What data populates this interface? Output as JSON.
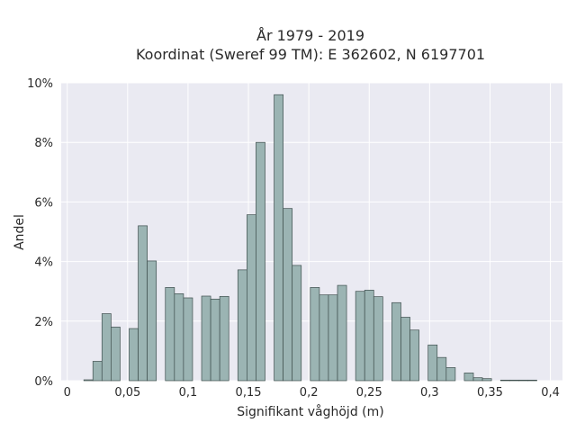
{
  "chart_data": {
    "type": "bar",
    "title_lines": [
      "År 1979 - 2019",
      "Koordinat (Sweref 99 TM): E 362602, N 6197701"
    ],
    "xlabel": "Signifikant våghöjd (m)",
    "ylabel": "Andel",
    "xlim": [
      -0.005,
      0.41
    ],
    "ylim": [
      0,
      10
    ],
    "bin_width": 0.0075,
    "x_ticks": [
      {
        "value": 0,
        "label": "0"
      },
      {
        "value": 0.05,
        "label": "0,05"
      },
      {
        "value": 0.1,
        "label": "0,1"
      },
      {
        "value": 0.15,
        "label": "0,15"
      },
      {
        "value": 0.2,
        "label": "0,2"
      },
      {
        "value": 0.25,
        "label": "0,25"
      },
      {
        "value": 0.3,
        "label": "0,3"
      },
      {
        "value": 0.35,
        "label": "0,35"
      },
      {
        "value": 0.4,
        "label": "0,4"
      }
    ],
    "y_ticks": [
      {
        "value": 0,
        "label": "0%"
      },
      {
        "value": 2,
        "label": "2%"
      },
      {
        "value": 4,
        "label": "4%"
      },
      {
        "value": 6,
        "label": "6%"
      },
      {
        "value": 8,
        "label": "8%"
      },
      {
        "value": 10,
        "label": "10%"
      }
    ],
    "bars": [
      {
        "x": 0.0175,
        "value": 0.03
      },
      {
        "x": 0.025,
        "value": 0.65
      },
      {
        "x": 0.0325,
        "value": 2.25
      },
      {
        "x": 0.04,
        "value": 1.8
      },
      {
        "x": 0.055,
        "value": 1.75
      },
      {
        "x": 0.0625,
        "value": 5.2
      },
      {
        "x": 0.07,
        "value": 4.02
      },
      {
        "x": 0.085,
        "value": 3.13
      },
      {
        "x": 0.0925,
        "value": 2.92
      },
      {
        "x": 0.1,
        "value": 2.78
      },
      {
        "x": 0.115,
        "value": 2.84
      },
      {
        "x": 0.1225,
        "value": 2.74
      },
      {
        "x": 0.13,
        "value": 2.83
      },
      {
        "x": 0.145,
        "value": 3.72
      },
      {
        "x": 0.1525,
        "value": 5.57
      },
      {
        "x": 0.16,
        "value": 8.0
      },
      {
        "x": 0.175,
        "value": 9.6
      },
      {
        "x": 0.1825,
        "value": 5.78
      },
      {
        "x": 0.19,
        "value": 3.87
      },
      {
        "x": 0.205,
        "value": 3.13
      },
      {
        "x": 0.2125,
        "value": 2.88
      },
      {
        "x": 0.22,
        "value": 2.88
      },
      {
        "x": 0.2275,
        "value": 3.2
      },
      {
        "x": 0.2425,
        "value": 3.0
      },
      {
        "x": 0.25,
        "value": 3.04
      },
      {
        "x": 0.2575,
        "value": 2.82
      },
      {
        "x": 0.2725,
        "value": 2.62
      },
      {
        "x": 0.28,
        "value": 2.13
      },
      {
        "x": 0.2875,
        "value": 1.7
      },
      {
        "x": 0.3025,
        "value": 1.2
      },
      {
        "x": 0.31,
        "value": 0.78
      },
      {
        "x": 0.3175,
        "value": 0.44
      },
      {
        "x": 0.3325,
        "value": 0.26
      },
      {
        "x": 0.34,
        "value": 0.1
      },
      {
        "x": 0.3475,
        "value": 0.07
      },
      {
        "x": 0.3625,
        "value": 0.02
      },
      {
        "x": 0.37,
        "value": 0.02
      },
      {
        "x": 0.3775,
        "value": 0.02
      },
      {
        "x": 0.385,
        "value": 0.02
      }
    ],
    "grid": true,
    "bar_color": "#9bb4b3",
    "bar_edge_color": "#3f4f4e",
    "plot_background": "#eaeaf2"
  }
}
